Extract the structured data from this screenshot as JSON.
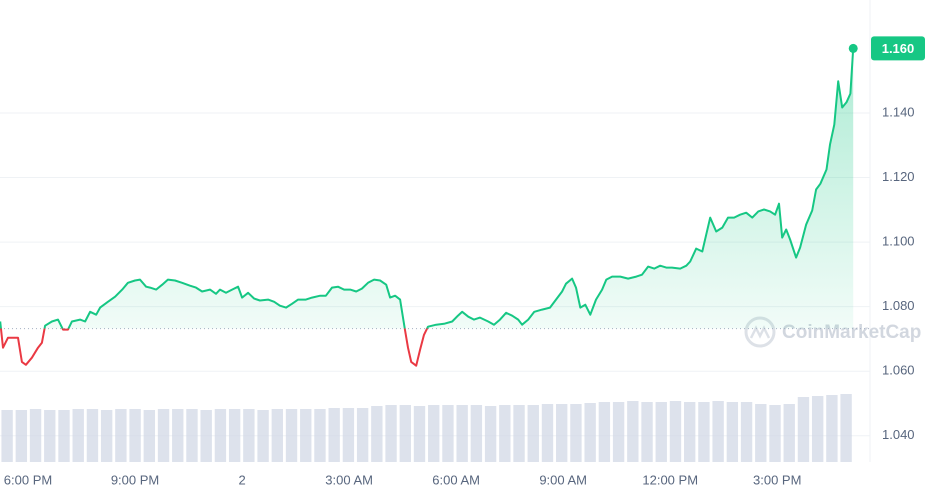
{
  "chart_data": {
    "type": "line",
    "series": [
      {
        "color": "#16c784",
        "below_color": "#ea3943",
        "x": [
          -0.78,
          -0.7,
          -0.56,
          -0.39,
          -0.28,
          -0.17,
          -0.06,
          0.11,
          0.28,
          0.39,
          0.48,
          0.67,
          0.84,
          0.98,
          1.12,
          1.23,
          1.46,
          1.6,
          1.74,
          1.91,
          2.02,
          2.24,
          2.44,
          2.64,
          2.8,
          3.0,
          3.14,
          3.31,
          3.42,
          3.59,
          3.76,
          3.92,
          4.12,
          4.32,
          4.54,
          4.71,
          4.88,
          5.1,
          5.27,
          5.38,
          5.55,
          5.72,
          5.89,
          6.0,
          6.17,
          6.34,
          6.5,
          6.73,
          6.9,
          7.06,
          7.23,
          7.4,
          7.57,
          7.79,
          7.96,
          8.19,
          8.35,
          8.52,
          8.69,
          8.86,
          9.03,
          9.2,
          9.36,
          9.53,
          9.7,
          9.87,
          10.04,
          10.15,
          10.29,
          10.43,
          10.51,
          10.57,
          10.65,
          10.74,
          10.88,
          10.99,
          11.1,
          11.21,
          11.44,
          11.66,
          11.89,
          12.05,
          12.17,
          12.34,
          12.5,
          12.67,
          12.9,
          13.06,
          13.23,
          13.4,
          13.57,
          13.74,
          13.85,
          14.02,
          14.19,
          14.41,
          14.63,
          14.8,
          14.97,
          15.08,
          15.25,
          15.36,
          15.48,
          15.62,
          15.76,
          15.92,
          16.09,
          16.21,
          16.37,
          16.6,
          16.82,
          17.05,
          17.21,
          17.38,
          17.55,
          17.72,
          17.89,
          18.05,
          18.28,
          18.45,
          18.56,
          18.73,
          18.9,
          19.01,
          19.12,
          19.29,
          19.46,
          19.62,
          19.79,
          19.96,
          20.13,
          20.3,
          20.47,
          20.63,
          20.8,
          20.94,
          21.05,
          21.14,
          21.25,
          21.36,
          21.53,
          21.64,
          21.81,
          21.98,
          22.09,
          22.21,
          22.38,
          22.48,
          22.6,
          22.71,
          22.82,
          22.94,
          23.05,
          23.13
        ],
        "values": [
          1.0754,
          1.0673,
          1.0704,
          1.0704,
          1.0704,
          1.0629,
          1.062,
          1.0642,
          1.0673,
          1.0688,
          1.0741,
          1.0754,
          1.076,
          1.0729,
          1.0729,
          1.0754,
          1.076,
          1.0754,
          1.0784,
          1.0775,
          1.0797,
          1.0815,
          1.0831,
          1.0853,
          1.0874,
          1.0881,
          1.0884,
          1.0862,
          1.0859,
          1.0853,
          1.0868,
          1.0884,
          1.0881,
          1.0874,
          1.0865,
          1.0859,
          1.0847,
          1.0853,
          1.084,
          1.0853,
          1.0843,
          1.0853,
          1.0862,
          1.0828,
          1.0843,
          1.0825,
          1.0819,
          1.0822,
          1.0815,
          1.0803,
          1.0797,
          1.0809,
          1.0822,
          1.0822,
          1.0828,
          1.0834,
          1.0834,
          1.0859,
          1.0862,
          1.0853,
          1.0853,
          1.0847,
          1.0856,
          1.0874,
          1.0884,
          1.0881,
          1.0868,
          1.0828,
          1.0834,
          1.0822,
          1.0766,
          1.0726,
          1.0673,
          1.0629,
          1.0617,
          1.0667,
          1.0713,
          1.0738,
          1.0744,
          1.0747,
          1.0754,
          1.0772,
          1.0784,
          1.0769,
          1.076,
          1.0766,
          1.0754,
          1.0744,
          1.076,
          1.0781,
          1.0772,
          1.076,
          1.0744,
          1.076,
          1.0784,
          1.0791,
          1.0797,
          1.0822,
          1.0847,
          1.0871,
          1.0887,
          1.0859,
          1.0797,
          1.0806,
          1.0775,
          1.0822,
          1.0853,
          1.0884,
          1.0893,
          1.0893,
          1.0887,
          1.0893,
          1.0899,
          1.0924,
          1.0918,
          1.0927,
          1.0921,
          1.0921,
          1.0918,
          1.0927,
          1.094,
          1.098,
          1.0971,
          1.1023,
          1.1076,
          1.1033,
          1.1045,
          1.1076,
          1.1076,
          1.1085,
          1.1091,
          1.1076,
          1.1095,
          1.1101,
          1.1095,
          1.1085,
          1.1119,
          1.1014,
          1.1039,
          1.1008,
          1.0952,
          1.0983,
          1.1054,
          1.1098,
          1.1163,
          1.1181,
          1.1225,
          1.1302,
          1.1364,
          1.1498,
          1.1417,
          1.1433,
          1.146,
          1.16
        ]
      }
    ],
    "baseline": 1.0732,
    "current_price": {
      "value": 1.16,
      "label": "1.160"
    },
    "volume": [
      52,
      52,
      53,
      52,
      52,
      53,
      53,
      52,
      53,
      53,
      52,
      53,
      53,
      53,
      52,
      53,
      53,
      53,
      52,
      53,
      53,
      53,
      53,
      54,
      54,
      54,
      56,
      57,
      57,
      56,
      57,
      57,
      57,
      57,
      56,
      57,
      57,
      57,
      58,
      58,
      58,
      59,
      60,
      60,
      61,
      60,
      60,
      61,
      60,
      60,
      61,
      60,
      60,
      58,
      57,
      58,
      65,
      66,
      67,
      68
    ],
    "volume_lim": [
      0,
      100
    ],
    "volume_color": "#cfd6e4",
    "watermark": "CoinMarketCap",
    "xlim": [
      -0.785,
      23.6
    ],
    "xticks": [
      {
        "value": 0,
        "label": "6:00 PM"
      },
      {
        "value": 3,
        "label": "9:00 PM"
      },
      {
        "value": 6,
        "label": "2"
      },
      {
        "value": 9,
        "label": "3:00 AM"
      },
      {
        "value": 12,
        "label": "6:00 AM"
      },
      {
        "value": 15,
        "label": "9:00 AM"
      },
      {
        "value": 18,
        "label": "12:00 PM"
      },
      {
        "value": 21,
        "label": "3:00 PM"
      }
    ],
    "ylim": [
      1.0325,
      1.175
    ],
    "yticks": [
      {
        "value": 1.04,
        "label": "1.040"
      },
      {
        "value": 1.06,
        "label": "1.060"
      },
      {
        "value": 1.08,
        "label": "1.080"
      },
      {
        "value": 1.1,
        "label": "1.100"
      },
      {
        "value": 1.12,
        "label": "1.120"
      },
      {
        "value": 1.14,
        "label": "1.140"
      }
    ],
    "grid": true
  }
}
